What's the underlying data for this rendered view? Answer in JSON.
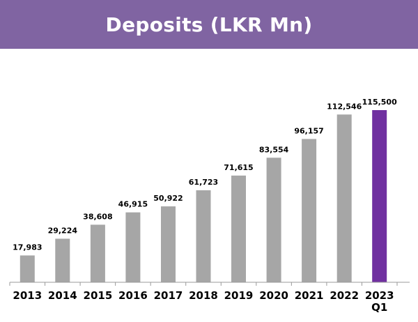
{
  "header": {
    "title": "Deposits (LKR Mn)",
    "banner_color": "#8064a2"
  },
  "chart_data": {
    "type": "bar",
    "title": "Deposits (LKR Mn)",
    "categories": [
      "2013",
      "2014",
      "2015",
      "2016",
      "2017",
      "2018",
      "2019",
      "2020",
      "2021",
      "2022",
      "2023 Q1"
    ],
    "values": [
      17983,
      29224,
      38608,
      46915,
      50922,
      61723,
      71615,
      83554,
      96157,
      112546,
      115500
    ],
    "data_labels": [
      "17,983",
      "29,224",
      "38,608",
      "46,915",
      "50,922",
      "61,723",
      "71,615",
      "83,554",
      "96,157",
      "112,546",
      "115,500"
    ],
    "xlabel": "",
    "ylabel": "",
    "ylim": [
      0,
      130000
    ],
    "grid": false,
    "legend": "none",
    "colors": {
      "default_bar": "#a6a6a6",
      "highlight_bar": "#7030a0",
      "axis": "#999999",
      "label_text": "#000000"
    },
    "highlight_index": 10
  }
}
